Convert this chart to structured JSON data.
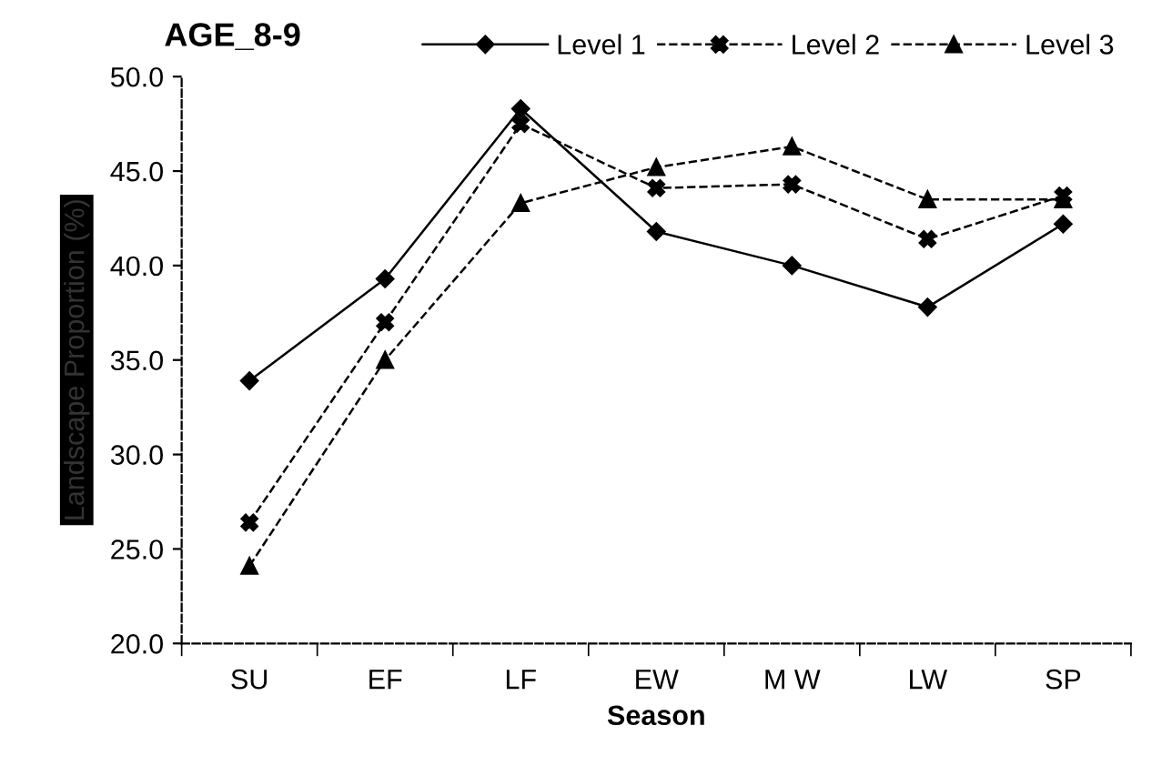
{
  "chart_data": {
    "type": "line",
    "title": "AGE_8-9",
    "xlabel": "Season",
    "ylabel": "Landscape Proportion (%)",
    "categories": [
      "SU",
      "EF",
      "LF",
      "EW",
      "M W",
      "LW",
      "SP"
    ],
    "series": [
      {
        "name": "Level 1",
        "color": "#000000",
        "marker": "diamond",
        "line_style": "solid",
        "values": [
          33.9,
          39.3,
          48.3,
          41.8,
          40.0,
          37.8,
          42.2
        ]
      },
      {
        "name": "Level 2",
        "color": "#000000",
        "marker": "cross",
        "line_style": "dashed",
        "values": [
          26.4,
          37.0,
          47.5,
          44.1,
          44.3,
          41.4,
          43.7
        ]
      },
      {
        "name": "Level 3",
        "color": "#000000",
        "marker": "triangle",
        "line_style": "dashed",
        "values": [
          24.1,
          35.0,
          43.3,
          45.2,
          46.3,
          43.5,
          43.5
        ]
      }
    ],
    "ylim": [
      20,
      50
    ],
    "yticks": [
      {
        "value": 20,
        "label": "20.0"
      },
      {
        "value": 25,
        "label": "25.0"
      },
      {
        "value": 30,
        "label": "30.0"
      },
      {
        "value": 35,
        "label": "35.0"
      },
      {
        "value": 40,
        "label": "40.0"
      },
      {
        "value": 45,
        "label": "45.0"
      },
      {
        "value": 50,
        "label": "50.0"
      }
    ],
    "grid": false,
    "legend": "top"
  }
}
